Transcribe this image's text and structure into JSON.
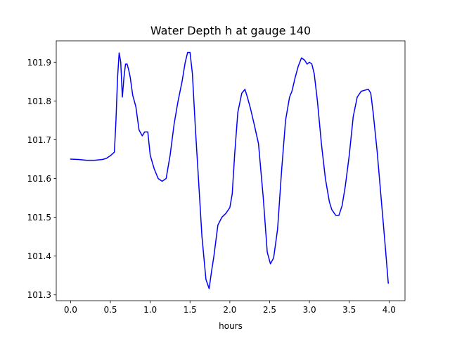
{
  "chart_data": {
    "type": "line",
    "title": "Water Depth h at gauge 140",
    "xlabel": "hours",
    "ylabel": "",
    "xlim": [
      -0.18,
      4.2
    ],
    "ylim": [
      101.285,
      101.955
    ],
    "xticks": [
      0.0,
      0.5,
      1.0,
      1.5,
      2.0,
      2.5,
      3.0,
      3.5,
      4.0
    ],
    "xtick_labels": [
      "0.0",
      "0.5",
      "1.0",
      "1.5",
      "2.0",
      "2.5",
      "3.0",
      "3.5",
      "4.0"
    ],
    "yticks": [
      101.3,
      101.4,
      101.5,
      101.6,
      101.7,
      101.8,
      101.9
    ],
    "ytick_labels": [
      "101.3",
      "101.4",
      "101.5",
      "101.6",
      "101.7",
      "101.8",
      "101.9"
    ],
    "grid": false,
    "series": [
      {
        "color": "#0000ff",
        "x": [
          0.0,
          0.1,
          0.2,
          0.3,
          0.4,
          0.45,
          0.5,
          0.55,
          0.57,
          0.59,
          0.61,
          0.63,
          0.65,
          0.67,
          0.69,
          0.71,
          0.73,
          0.75,
          0.78,
          0.82,
          0.86,
          0.9,
          0.93,
          0.97,
          1.0,
          1.05,
          1.1,
          1.15,
          1.2,
          1.25,
          1.3,
          1.35,
          1.4,
          1.44,
          1.47,
          1.5,
          1.53,
          1.57,
          1.6,
          1.65,
          1.7,
          1.74,
          1.77,
          1.8,
          1.85,
          1.9,
          1.95,
          2.0,
          2.03,
          2.06,
          2.1,
          2.15,
          2.19,
          2.22,
          2.26,
          2.3,
          2.36,
          2.42,
          2.47,
          2.51,
          2.55,
          2.6,
          2.65,
          2.7,
          2.75,
          2.78,
          2.82,
          2.86,
          2.9,
          2.94,
          2.97,
          3.0,
          3.03,
          3.06,
          3.1,
          3.15,
          3.2,
          3.25,
          3.28,
          3.33,
          3.37,
          3.41,
          3.45,
          3.5,
          3.55,
          3.6,
          3.65,
          3.7,
          3.74,
          3.77,
          3.8,
          3.85,
          3.9,
          3.95,
          3.99
        ],
        "y": [
          101.65,
          101.649,
          101.647,
          101.647,
          101.649,
          101.652,
          101.659,
          101.668,
          101.75,
          101.86,
          101.924,
          101.9,
          101.81,
          101.86,
          101.895,
          101.895,
          101.88,
          101.86,
          101.815,
          101.785,
          101.725,
          101.71,
          101.72,
          101.72,
          101.66,
          101.625,
          101.6,
          101.593,
          101.6,
          101.66,
          101.74,
          101.8,
          101.85,
          101.9,
          101.925,
          101.925,
          101.87,
          101.72,
          101.62,
          101.45,
          101.34,
          101.316,
          101.36,
          101.4,
          101.48,
          101.5,
          101.51,
          101.525,
          101.56,
          101.66,
          101.77,
          101.82,
          101.83,
          101.81,
          101.78,
          101.745,
          101.69,
          101.55,
          101.41,
          101.38,
          101.395,
          101.47,
          101.62,
          101.75,
          101.81,
          101.825,
          101.86,
          101.89,
          101.911,
          101.905,
          101.895,
          101.9,
          101.895,
          101.87,
          101.8,
          101.69,
          101.6,
          101.54,
          101.52,
          101.505,
          101.505,
          101.53,
          101.58,
          101.66,
          101.76,
          101.81,
          101.825,
          101.828,
          101.83,
          101.82,
          101.77,
          101.67,
          101.55,
          101.43,
          101.33
        ]
      }
    ]
  }
}
